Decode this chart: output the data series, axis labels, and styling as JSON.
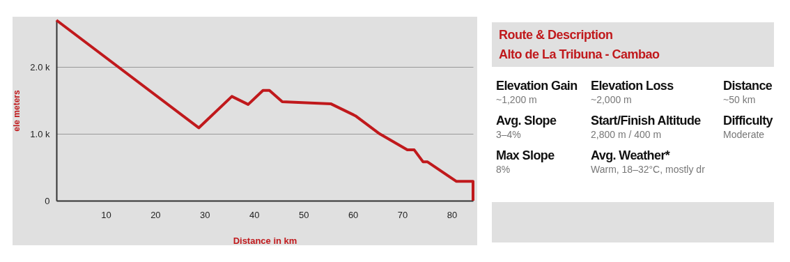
{
  "chart_data": [
    {
      "type": "line",
      "xlabel": "Distance in km",
      "ylabel": "ele meters",
      "x": [
        0,
        28.8,
        35.5,
        38.8,
        41.8,
        43.1,
        45.7,
        55.5,
        60.5,
        65.4,
        71,
        72.4,
        74.2,
        75.1,
        80.9,
        84.3,
        84.3
      ],
      "series": [
        {
          "color": "#c0191c",
          "values": [
            2700,
            1090,
            1560,
            1440,
            1650,
            1650,
            1480,
            1450,
            1270,
            1000,
            760,
            760,
            580,
            580,
            290,
            290,
            0
          ]
        }
      ],
      "xlim": [
        0,
        84.3
      ],
      "xticks": [
        10,
        20,
        30,
        40,
        50,
        60,
        70,
        80
      ],
      "ylim": [
        0,
        2700
      ],
      "yticks": [
        0,
        {
          "value": 1000,
          "label": "1.0 k"
        },
        {
          "value": 2000,
          "label": "2.0 k"
        }
      ],
      "grid": "y"
    },
    {
      "type": "other",
      "title": "Route & Description",
      "subtitle": "Alto de La Tribuna - Cambao",
      "annotations": [
        "Elevation Gain",
        "~1,200 m",
        "Elevation Loss",
        "~2,000 m",
        "Distance",
        "~50 km",
        "Avg. Slope",
        "3–4%",
        "Start/Finish Altitude",
        "2,800 m / 400 m",
        "Difficulty",
        "Moderate",
        "Max Slope",
        "8%",
        "Avg. Weather*",
        "Warm, 18–32°C, mostly dr"
      ]
    }
  ]
}
